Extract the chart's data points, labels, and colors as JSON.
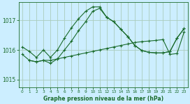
{
  "background_color": "#cceeff",
  "grid_color": "#aaccbb",
  "line_color": "#1a6b2a",
  "title": "Graphe pression niveau de la mer (hPa)",
  "xlim": [
    -0.5,
    23.5
  ],
  "ylim": [
    1014.75,
    1017.6
  ],
  "yticks": [
    1015,
    1016,
    1017
  ],
  "xticks": [
    0,
    1,
    2,
    3,
    4,
    5,
    6,
    7,
    8,
    9,
    10,
    11,
    12,
    13,
    14,
    15,
    16,
    17,
    18,
    19,
    20,
    21,
    22,
    23
  ],
  "series1_x": [
    0,
    1,
    2,
    3,
    4,
    5,
    6,
    7,
    8,
    9,
    10,
    11,
    12,
    13,
    14,
    15,
    16,
    17,
    18,
    19,
    20,
    21,
    22,
    23
  ],
  "series1_y": [
    1015.85,
    1015.65,
    1015.6,
    1015.65,
    1015.65,
    1015.7,
    1015.75,
    1015.8,
    1015.85,
    1015.9,
    1015.95,
    1016.0,
    1016.05,
    1016.1,
    1016.15,
    1016.2,
    1016.25,
    1016.28,
    1016.3,
    1016.32,
    1016.35,
    1015.85,
    1015.88,
    1016.6
  ],
  "series2_x": [
    0,
    1,
    2,
    3,
    4,
    5,
    6,
    7,
    8,
    9,
    10,
    11,
    12,
    13,
    14,
    15,
    16,
    17,
    18,
    19,
    20,
    21,
    22,
    23
  ],
  "series2_y": [
    1016.1,
    1015.95,
    1015.75,
    1016.0,
    1015.75,
    1016.0,
    1016.4,
    1016.75,
    1017.05,
    1017.3,
    1017.45,
    1017.45,
    1017.1,
    1016.95,
    1016.7,
    1016.45,
    1016.15,
    1015.98,
    1015.92,
    1015.9,
    1015.9,
    1015.95,
    1016.4,
    1016.72
  ],
  "series3_x": [
    1,
    2,
    3,
    4,
    5,
    6,
    7,
    8,
    9,
    10,
    11,
    12,
    13,
    14,
    15,
    16,
    17,
    18,
    19,
    20,
    21,
    22,
    23
  ],
  "series3_y": [
    1015.65,
    1015.6,
    1015.65,
    1015.55,
    1015.7,
    1016.0,
    1016.3,
    1016.65,
    1016.95,
    1017.3,
    1017.4,
    1017.1,
    1016.95,
    1016.7,
    1016.45,
    1016.15,
    1015.98,
    1015.92,
    1015.9,
    1015.9,
    1015.95,
    1016.4,
    1016.72
  ]
}
